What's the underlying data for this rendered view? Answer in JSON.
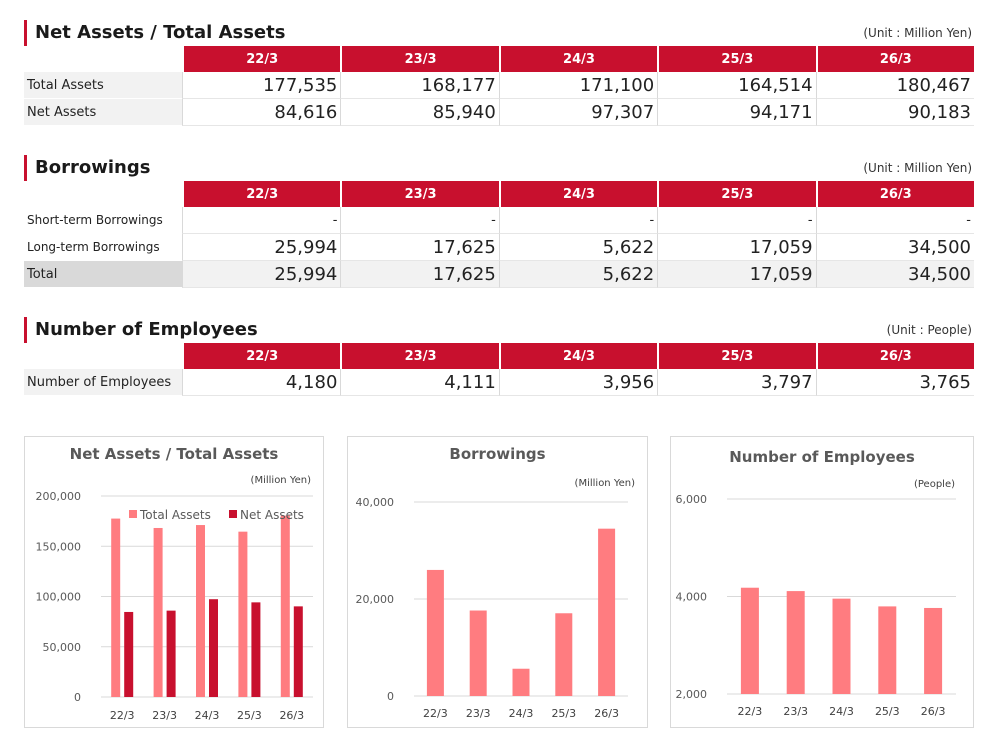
{
  "colors": {
    "accent": "#c8102e",
    "bar_light": "#ff7c80",
    "bar_dark": "#c8102e"
  },
  "years": [
    "22/3",
    "23/3",
    "24/3",
    "25/3",
    "26/3"
  ],
  "assets_section": {
    "title": "Net Assets / Total Assets",
    "unit": "(Unit : Million Yen)",
    "rows": [
      {
        "label": "Total Assets",
        "values": [
          "177,535",
          "168,177",
          "171,100",
          "164,514",
          "180,467"
        ]
      },
      {
        "label": "Net Assets",
        "values": [
          "84,616",
          "85,940",
          "97,307",
          "94,171",
          "90,183"
        ]
      }
    ]
  },
  "borrowings_section": {
    "title": "Borrowings",
    "unit": "(Unit : Million Yen)",
    "rows": [
      {
        "label": "Short-term Borrowings",
        "values": [
          "-",
          "-",
          "-",
          "-",
          "-"
        ]
      },
      {
        "label": "Long-term Borrowings",
        "values": [
          "25,994",
          "17,625",
          "5,622",
          "17,059",
          "34,500"
        ]
      },
      {
        "label": "Total",
        "values": [
          "25,994",
          "17,625",
          "5,622",
          "17,059",
          "34,500"
        ]
      }
    ]
  },
  "employees_section": {
    "title": "Number of Employees",
    "unit": "(Unit : People)",
    "rows": [
      {
        "label": "Number of Employees",
        "values": [
          "4,180",
          "4,111",
          "3,956",
          "3,797",
          "3,765"
        ]
      }
    ]
  },
  "chart_data": [
    {
      "type": "bar",
      "title": "Net Assets / Total Assets",
      "unit": "(Million Yen)",
      "categories": [
        "22/3",
        "23/3",
        "24/3",
        "25/3",
        "26/3"
      ],
      "series": [
        {
          "name": "Total Assets",
          "color": "#ff7c80",
          "values": [
            177535,
            168177,
            171100,
            164514,
            180467
          ]
        },
        {
          "name": "Net Assets",
          "color": "#c8102e",
          "values": [
            84616,
            85940,
            97307,
            94171,
            90183
          ]
        }
      ],
      "ylim": [
        0,
        200000
      ],
      "yticks": [
        0,
        50000,
        100000,
        150000,
        200000
      ],
      "ytick_labels": [
        "0",
        "50,000",
        "100,000",
        "150,000",
        "200,000"
      ],
      "legend": "top-right",
      "grid": true
    },
    {
      "type": "bar",
      "title": "Borrowings",
      "unit": "(Million Yen)",
      "categories": [
        "22/3",
        "23/3",
        "24/3",
        "25/3",
        "26/3"
      ],
      "series": [
        {
          "color": "#ff7c80",
          "values": [
            25994,
            17625,
            5622,
            17059,
            34500
          ]
        }
      ],
      "ylim": [
        0,
        40000
      ],
      "yticks": [
        0,
        20000,
        40000
      ],
      "ytick_labels": [
        "0",
        "20,000",
        "40,000"
      ],
      "grid": true
    },
    {
      "type": "bar",
      "title": "Number of Employees",
      "unit": "(People)",
      "categories": [
        "22/3",
        "23/3",
        "24/3",
        "25/3",
        "26/3"
      ],
      "series": [
        {
          "color": "#ff7c80",
          "values": [
            4180,
            4111,
            3956,
            3797,
            3765
          ]
        }
      ],
      "ylim": [
        2000,
        6000
      ],
      "yticks": [
        2000,
        4000,
        6000
      ],
      "ytick_labels": [
        "2,000",
        "4,000",
        "6,000"
      ],
      "grid": true
    }
  ]
}
